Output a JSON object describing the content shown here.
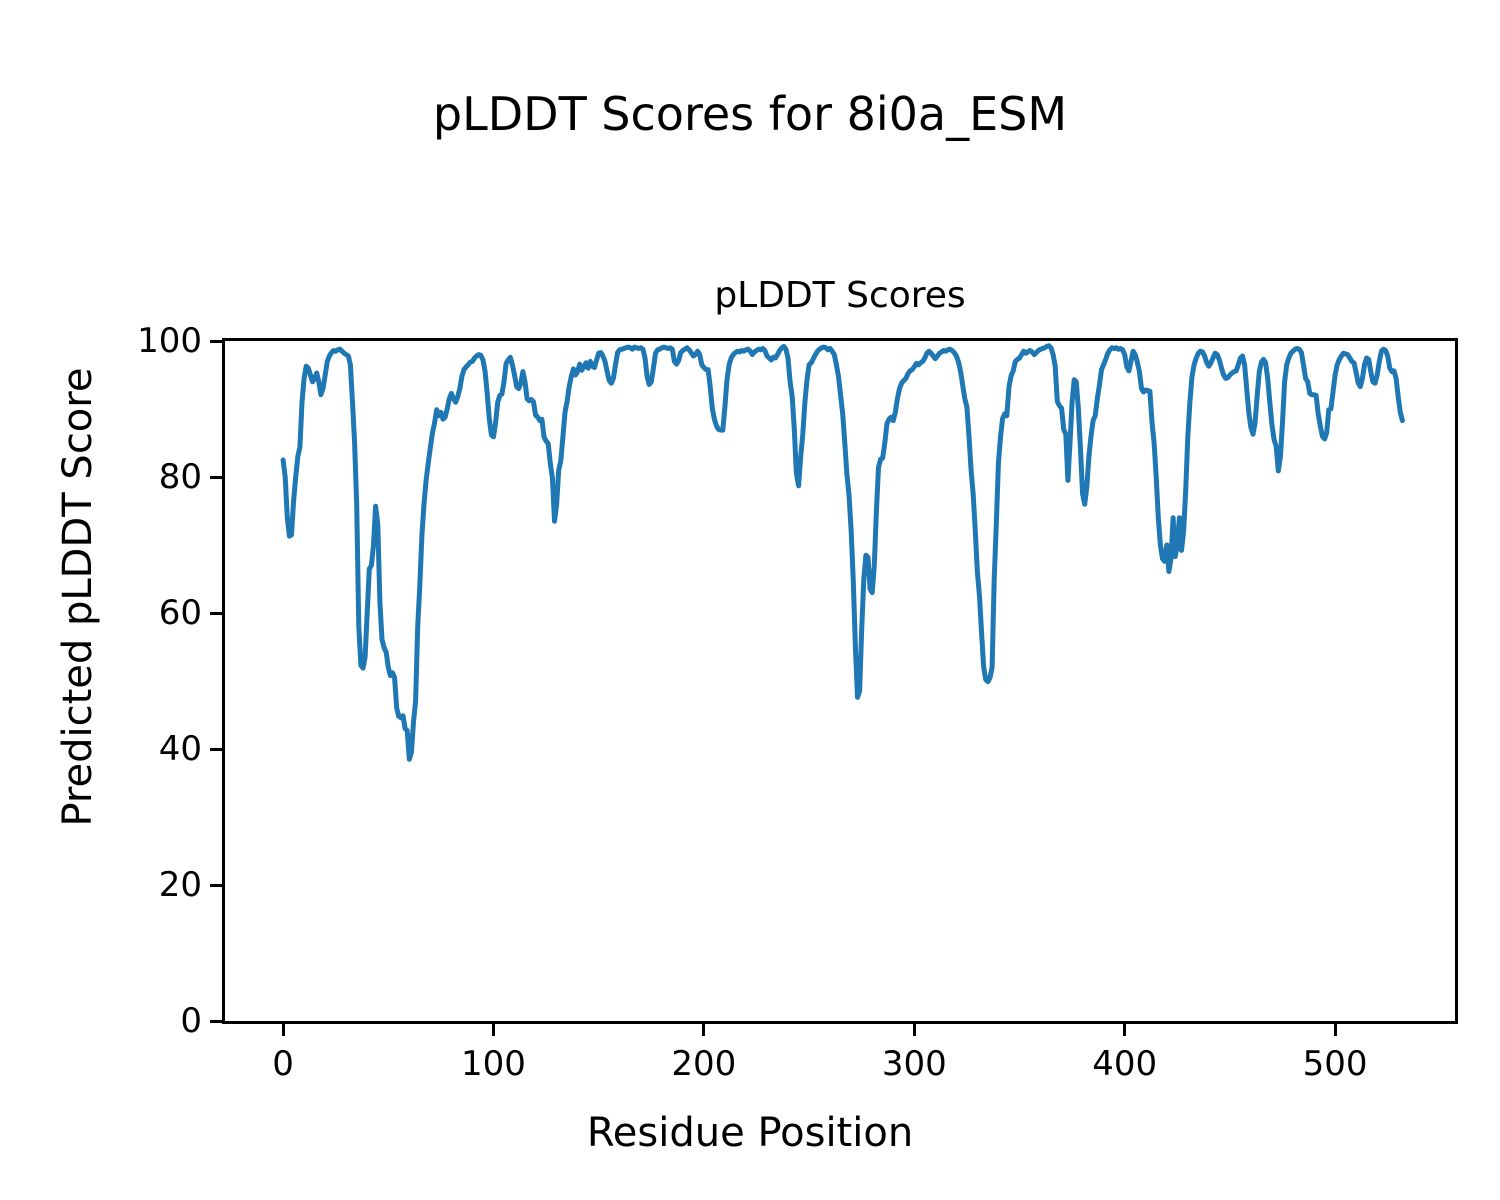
{
  "figure": {
    "suptitle": "pLDDT Scores for 8i0a_ESM",
    "background_color": "#ffffff",
    "text_color": "#000000"
  },
  "chart_data": {
    "type": "line",
    "title": "pLDDT Scores",
    "xlabel": "Residue Position",
    "ylabel": "Predicted pLDDT Score",
    "x_ticks": [
      0,
      100,
      200,
      300,
      400,
      500
    ],
    "y_ticks": [
      0,
      20,
      40,
      60,
      80,
      100
    ],
    "xlim": [
      -27.6,
      557.0
    ],
    "ylim": [
      0,
      100
    ],
    "grid": false,
    "legend_position": "none",
    "line_color": "#1f77b4",
    "line_width": 5,
    "series": [
      {
        "name": "pLDDT",
        "residue_start": 0,
        "residue_step": 1,
        "values": [
          82.5,
          80,
          74,
          71.3,
          71.5,
          76.5,
          80,
          83,
          84.4,
          91,
          94.5,
          96.3,
          96,
          95,
          94,
          94.5,
          95.3,
          94,
          92.1,
          93,
          95,
          97,
          97.8,
          98.3,
          98.6,
          98.5,
          98.7,
          98.8,
          98.5,
          98.2,
          98,
          97.8,
          96.5,
          91,
          85,
          76,
          58,
          52.3,
          51.9,
          53.5,
          60,
          66.5,
          67,
          70,
          75.7,
          73,
          61.6,
          56.1,
          54.9,
          54.2,
          52,
          50.8,
          51.2,
          50.5,
          46,
          44.8,
          44.6,
          44.9,
          43,
          42.7,
          38.5,
          39.5,
          44,
          47,
          58,
          64,
          71.4,
          76,
          79.5,
          82,
          84.4,
          86.5,
          88,
          89.9,
          89,
          89.5,
          88.5,
          88.8,
          90,
          91.5,
          92.3,
          91.5,
          91,
          91.8,
          93,
          94.8,
          95.8,
          96.2,
          96.5,
          96.9,
          97,
          97.5,
          97.8,
          98,
          97.9,
          97.2,
          95.5,
          92.3,
          88.5,
          86.2,
          85.9,
          88,
          91,
          92,
          92.2,
          94,
          96.7,
          97.2,
          97.6,
          96.5,
          95,
          93.3,
          93,
          93.8,
          95.5,
          94,
          91.5,
          91.2,
          91.4,
          91.1,
          89.1,
          88.8,
          88.3,
          88.5,
          85.9,
          85.3,
          84.9,
          82,
          79.9,
          73.5,
          75.9,
          81,
          82.4,
          85.9,
          89.5,
          91.1,
          93.3,
          94.8,
          95.9,
          95,
          95.5,
          96.6,
          95.7,
          96.2,
          96.8,
          96,
          97,
          96.3,
          96.1,
          97.2,
          98.2,
          98.3,
          97.8,
          97,
          95.5,
          94.2,
          93.8,
          94.5,
          96.5,
          98.3,
          98.7,
          98.8,
          98.9,
          99,
          99.1,
          99,
          98.8,
          99.1,
          99,
          98.9,
          99,
          98.8,
          97.5,
          94.8,
          93.6,
          94,
          96,
          98.2,
          98.7,
          98.8,
          99,
          99.1,
          99,
          98.9,
          99,
          98.8,
          97,
          96.6,
          97.1,
          98.3,
          98.6,
          98.8,
          99,
          98.7,
          98.3,
          97.8,
          98,
          98.5,
          98,
          96.5,
          96.1,
          95.8,
          95.8,
          93.3,
          90.1,
          88.5,
          87.5,
          87,
          86.9,
          86.9,
          90.3,
          94.3,
          96.5,
          97.5,
          98,
          98.3,
          98.5,
          98.4,
          98.6,
          98.5,
          98.7,
          98.8,
          98.5,
          98,
          98.4,
          98.6,
          98.8,
          98.7,
          98.9,
          98.6,
          97.8,
          97.5,
          97.2,
          97.6,
          97.5,
          98,
          98.6,
          99,
          99.2,
          98.8,
          97.5,
          94,
          91.8,
          87,
          80.5,
          78.7,
          83,
          86.3,
          91,
          94.3,
          96.5,
          96.8,
          97.4,
          98,
          98.5,
          98.8,
          99,
          99.1,
          99,
          98.7,
          98.9,
          98.5,
          98,
          96.5,
          94.8,
          92,
          89.3,
          85,
          80.4,
          77.4,
          72,
          64.6,
          55,
          47.6,
          48.5,
          57.6,
          65,
          68.5,
          68.2,
          63.5,
          63,
          67,
          75,
          81.4,
          82.6,
          82.8,
          85,
          87.8,
          88.5,
          88.8,
          88.3,
          89.5,
          91.5,
          93,
          93.8,
          94.2,
          94.5,
          95.2,
          95.6,
          95.8,
          96.2,
          96.7,
          96.5,
          96.8,
          97,
          97.5,
          98.2,
          98.5,
          98.2,
          97.8,
          97.4,
          97.8,
          98.2,
          98.4,
          98.6,
          98.5,
          98.7,
          98.8,
          98.6,
          98.3,
          97.8,
          96.9,
          95.5,
          93.5,
          91.5,
          90.3,
          86,
          81,
          77.4,
          72,
          66,
          62.5,
          57,
          52,
          50.2,
          49.9,
          50.5,
          52,
          65,
          73,
          82,
          85.9,
          88.6,
          89.3,
          89,
          93.3,
          94.9,
          95.6,
          97,
          97.3,
          97.5,
          98,
          98.5,
          98.2,
          98.4,
          98.6,
          98.4,
          98,
          98.3,
          98.6,
          98.8,
          98.9,
          99,
          99.2,
          99.3,
          99,
          98,
          96.3,
          91.1,
          90.5,
          90.1,
          87,
          86.3,
          79.5,
          85,
          91,
          94.3,
          94,
          90,
          84,
          77.5,
          76,
          78.5,
          83,
          86,
          88.3,
          89,
          91.5,
          93.5,
          95.8,
          96.5,
          97.3,
          98.2,
          98.7,
          99,
          98.9,
          99,
          98.8,
          98.9,
          98.7,
          98,
          96.2,
          95.6,
          97,
          98.5,
          98,
          96.9,
          95.5,
          93,
          92.5,
          92.8,
          92.7,
          92.6,
          88.1,
          85,
          80,
          74,
          70,
          68,
          67.6,
          70,
          66.1,
          68,
          74,
          68.3,
          70,
          74,
          69.2,
          72,
          78,
          85.9,
          91,
          94.8,
          96.5,
          97.5,
          98.2,
          98.5,
          98.4,
          97.8,
          96.8,
          96.3,
          96.8,
          97.5,
          98.2,
          98,
          97.2,
          96,
          95,
          94.5,
          94.6,
          95,
          95.3,
          95.5,
          95.6,
          96.5,
          97.5,
          97.8,
          96.5,
          93,
          89.5,
          87.3,
          86.3,
          88,
          92,
          95.5,
          96.9,
          97.3,
          96.8,
          94.5,
          91,
          87.6,
          85.5,
          84.5,
          80.9,
          83,
          88,
          94,
          96.5,
          97.5,
          98.2,
          98.5,
          98.8,
          98.9,
          98.8,
          98.3,
          96.5,
          94.5,
          94,
          92.3,
          92.1,
          92.1,
          92,
          89.3,
          87.5,
          86,
          85.6,
          86.5,
          89.9,
          90,
          92.5,
          95,
          96.5,
          97.3,
          97.8,
          98.2,
          98.1,
          98,
          97.5,
          97,
          96.8,
          95.4,
          93.8,
          93.3,
          94.5,
          96.5,
          97.5,
          97.3,
          95.5,
          94,
          93.8,
          95,
          97,
          98.5,
          98.8,
          98.6,
          97.8,
          96,
          95.5,
          95.6,
          94.5,
          91.8,
          89.5,
          88.3
        ]
      }
    ]
  }
}
